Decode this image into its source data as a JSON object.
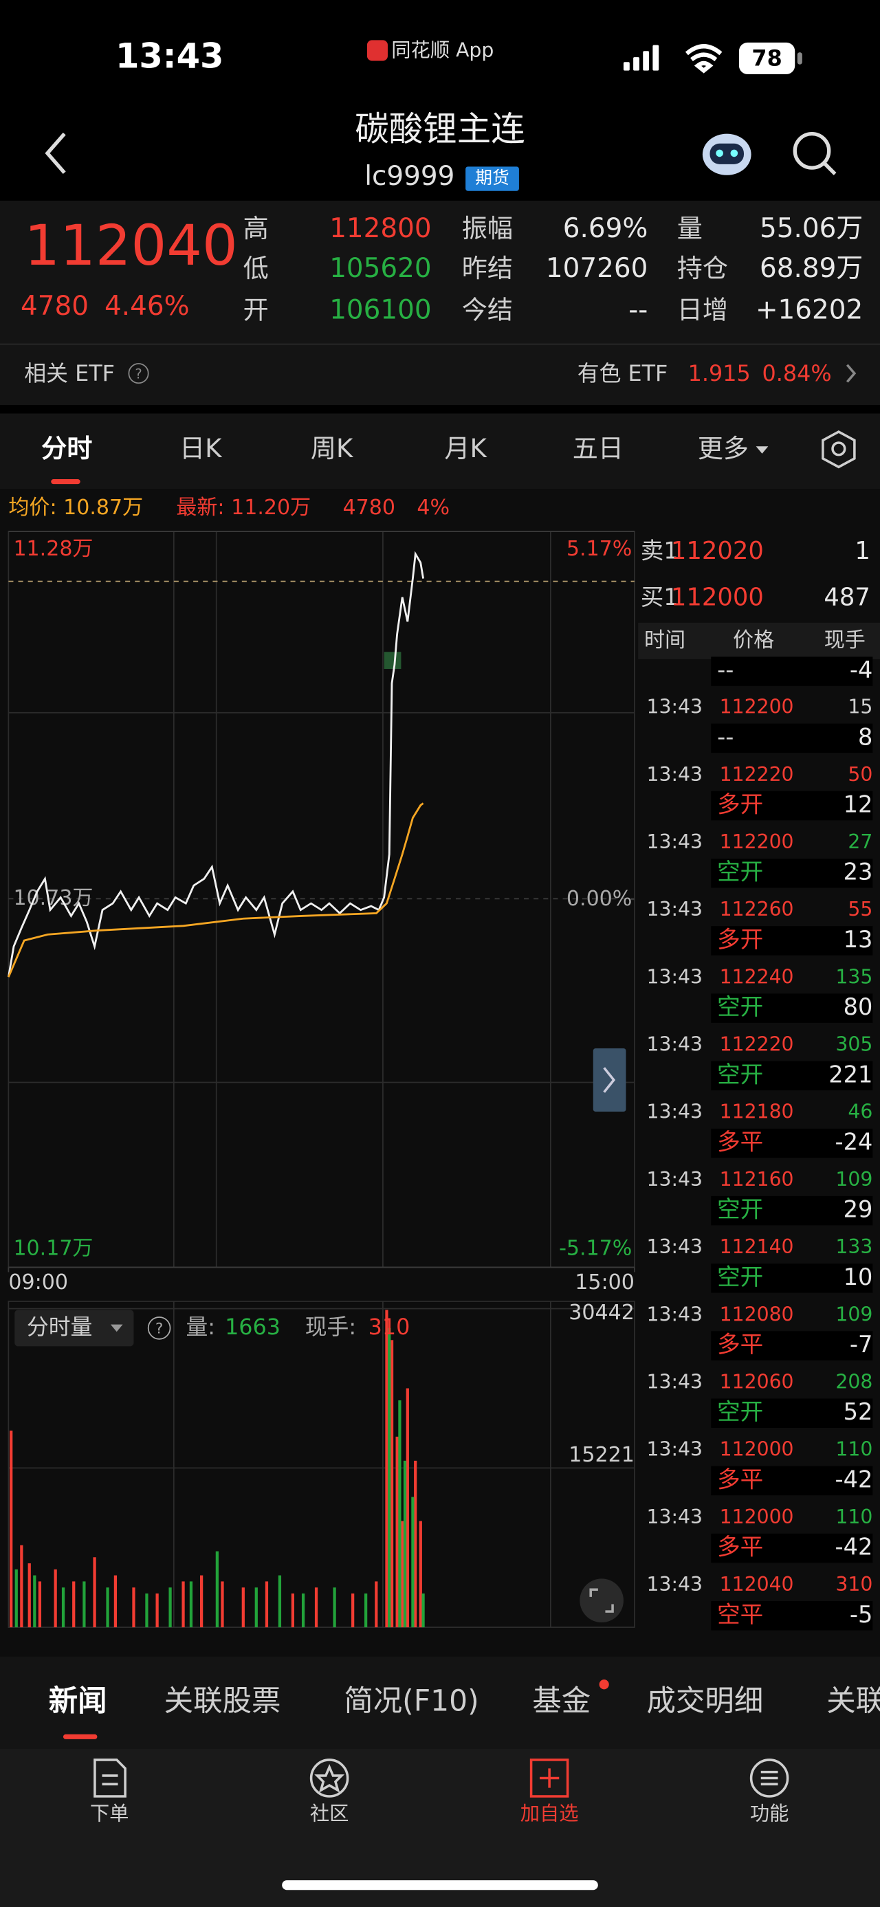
{
  "status": {
    "time": "13:43",
    "app": "同花顺 App",
    "battery": "78"
  },
  "header": {
    "title": "碳酸锂主连",
    "code": "lc9999",
    "tag": "期货"
  },
  "quote": {
    "price": "112040",
    "change": "4780",
    "change_pct": "4.46%",
    "stats": [
      [
        {
          "label": "高",
          "value": "112800",
          "color": "#f23c32"
        },
        {
          "label": "振幅",
          "value": "6.69%",
          "color": "#e8e8e8"
        },
        {
          "label": "量",
          "value": "55.06万",
          "color": "#e8e8e8"
        }
      ],
      [
        {
          "label": "低",
          "value": "105620",
          "color": "#27b043"
        },
        {
          "label": "昨结",
          "value": "107260",
          "color": "#e8e8e8"
        },
        {
          "label": "持仓",
          "value": "68.89万",
          "color": "#e8e8e8"
        }
      ],
      [
        {
          "label": "开",
          "value": "106100",
          "color": "#27b043"
        },
        {
          "label": "今结",
          "value": "--",
          "color": "#e8e8e8"
        },
        {
          "label": "日增",
          "value": "+16202",
          "color": "#e8e8e8"
        }
      ]
    ]
  },
  "etf": {
    "label": "相关 ETF",
    "name": "有色 ETF",
    "price": "1.915",
    "pct": "0.84%"
  },
  "period_tabs": [
    "分时",
    "日K",
    "周K",
    "月K",
    "五日",
    "更多"
  ],
  "summary": {
    "avg": "均价: 10.87万",
    "latest": "最新: 11.20万",
    "change": "4780",
    "pct": "4%"
  },
  "chart_data": [
    {
      "type": "line",
      "xlim": [
        0,
        240
      ],
      "xticks": [
        {
          "value": 0,
          "label": "09:00"
        },
        {
          "value": 240,
          "label": "15:00"
        }
      ],
      "ylim": [
        101700,
        112800
      ],
      "yticks": [
        {
          "value": 112800,
          "label": "11.28万"
        },
        {
          "value": 107260,
          "label": "10.73万"
        },
        {
          "value": 101700,
          "label": "10.17万"
        }
      ],
      "y2lim": [
        -5.17,
        5.17
      ],
      "y2ticks": [
        {
          "value": 5.17,
          "label": "5.17%"
        },
        {
          "value": 0,
          "label": "0.00%"
        },
        {
          "value": -5.17,
          "label": "-5.17%"
        }
      ],
      "series": [
        {
          "color": "#f0f0f0",
          "x": [
            0,
            2,
            5,
            8,
            11,
            14,
            16,
            20,
            24,
            27,
            30,
            33,
            36,
            40,
            43,
            47,
            50,
            54,
            57,
            61,
            64,
            68,
            71,
            75,
            78,
            81,
            84,
            88,
            91,
            95,
            98,
            102,
            105,
            109,
            112,
            116,
            120,
            123,
            127,
            131,
            135,
            139,
            142,
            144,
            146,
            147,
            148,
            149,
            151,
            152,
            153,
            155,
            156,
            158,
            159
          ],
          "values": [
            106080,
            106540,
            106820,
            107090,
            107370,
            107560,
            107090,
            107280,
            107000,
            107190,
            106910,
            106540,
            107090,
            107190,
            107370,
            107090,
            107280,
            107000,
            107190,
            107090,
            107280,
            107190,
            107460,
            107560,
            107740,
            107190,
            107460,
            107090,
            107280,
            107090,
            107280,
            106720,
            107190,
            107370,
            107090,
            107190,
            107090,
            107190,
            107040,
            107190,
            107090,
            107150,
            107090,
            107280,
            107930,
            110510,
            110790,
            111250,
            111810,
            111620,
            111440,
            112090,
            112460,
            112330,
            112090
          ]
        },
        {
          "color": "#f5a623",
          "x": [
            0,
            6,
            15,
            34,
            67,
            90,
            113,
            141,
            145,
            148,
            151,
            153,
            155,
            158,
            159
          ],
          "values": [
            106080,
            106630,
            106720,
            106780,
            106850,
            106960,
            107000,
            107040,
            107190,
            107560,
            107930,
            108200,
            108480,
            108670,
            108700
          ]
        }
      ]
    },
    {
      "type": "bar",
      "xlim": [
        0,
        240
      ],
      "ylim": [
        0,
        30442
      ],
      "yticks": [
        30442,
        15221
      ],
      "series": [
        {
          "color": "#f23c32",
          "x": [
            1,
            5,
            8,
            12,
            18,
            25,
            33,
            41,
            48,
            57,
            67,
            74,
            82,
            90,
            99,
            109,
            118,
            132,
            141,
            145,
            147,
            149,
            151,
            153,
            156,
            158
          ],
          "values": [
            18790,
            7840,
            6110,
            4380,
            5530,
            4380,
            6690,
            4960,
            3800,
            3230,
            4380,
            4960,
            4380,
            3800,
            4380,
            3230,
            3800,
            3230,
            4380,
            30320,
            27440,
            18210,
            10150,
            22830,
            15910,
            10150
          ]
        },
        {
          "color": "#22a33a",
          "x": [
            3,
            10,
            21,
            29,
            38,
            53,
            62,
            70,
            80,
            95,
            104,
            113,
            125,
            137,
            146,
            150,
            152,
            155,
            159
          ],
          "values": [
            5530,
            4960,
            3800,
            4380,
            3800,
            3230,
            3800,
            4380,
            7260,
            3800,
            4960,
            3230,
            3800,
            3230,
            28590,
            21680,
            15910,
            12450,
            3230
          ]
        }
      ]
    }
  ],
  "volume_panel": {
    "selector": "分时量",
    "vol_label": "量:",
    "vol": "1663",
    "hand_label": "现手:",
    "hand": "310"
  },
  "order_book": {
    "ask_label": "卖1",
    "ask_price": "112020",
    "ask_vol": "1",
    "bid_label": "买1",
    "bid_price": "112000",
    "bid_vol": "487",
    "columns": [
      "时间",
      "价格",
      "现手"
    ]
  },
  "trades": [
    {
      "kind": "--",
      "kind_color": "#cfcfcf",
      "net": "-4"
    },
    {
      "time": "13:43",
      "price": "112200",
      "vol": "15",
      "vol_color": "#cfcfcf",
      "kind": "--",
      "kind_color": "#cfcfcf",
      "net": "8"
    },
    {
      "time": "13:43",
      "price": "112220",
      "vol": "50",
      "vol_color": "#f23c32",
      "kind": "多开",
      "kind_color": "#f23c32",
      "net": "12"
    },
    {
      "time": "13:43",
      "price": "112200",
      "vol": "27",
      "vol_color": "#27b043",
      "kind": "空开",
      "kind_color": "#27b043",
      "net": "23"
    },
    {
      "time": "13:43",
      "price": "112260",
      "vol": "55",
      "vol_color": "#f23c32",
      "kind": "多开",
      "kind_color": "#f23c32",
      "net": "13"
    },
    {
      "time": "13:43",
      "price": "112240",
      "vol": "135",
      "vol_color": "#27b043",
      "kind": "空开",
      "kind_color": "#27b043",
      "net": "80"
    },
    {
      "time": "13:43",
      "price": "112220",
      "vol": "305",
      "vol_color": "#27b043",
      "kind": "空开",
      "kind_color": "#27b043",
      "net": "221"
    },
    {
      "time": "13:43",
      "price": "112180",
      "vol": "46",
      "vol_color": "#27b043",
      "kind": "多平",
      "kind_color": "#f23c32",
      "net": "-24"
    },
    {
      "time": "13:43",
      "price": "112160",
      "vol": "109",
      "vol_color": "#27b043",
      "kind": "空开",
      "kind_color": "#27b043",
      "net": "29"
    },
    {
      "time": "13:43",
      "price": "112140",
      "vol": "133",
      "vol_color": "#27b043",
      "kind": "空开",
      "kind_color": "#27b043",
      "net": "10"
    },
    {
      "time": "13:43",
      "price": "112080",
      "vol": "109",
      "vol_color": "#27b043",
      "kind": "多平",
      "kind_color": "#f23c32",
      "net": "-7"
    },
    {
      "time": "13:43",
      "price": "112060",
      "vol": "208",
      "vol_color": "#27b043",
      "kind": "空开",
      "kind_color": "#27b043",
      "net": "52"
    },
    {
      "time": "13:43",
      "price": "112000",
      "vol": "110",
      "vol_color": "#27b043",
      "kind": "多平",
      "kind_color": "#f23c32",
      "net": "-42"
    },
    {
      "time": "13:43",
      "price": "112000",
      "vol": "110",
      "vol_color": "#27b043",
      "kind": "多平",
      "kind_color": "#f23c32",
      "net": "-42"
    },
    {
      "time": "13:43",
      "price": "112040",
      "vol": "310",
      "vol_color": "#f23c32",
      "kind": "空平",
      "kind_color": "#f23c32",
      "net": "-5"
    }
  ],
  "bottom_tabs": [
    "新闻",
    "关联股票",
    "简况(F10)",
    "基金",
    "成交明细",
    "关联"
  ],
  "nav": [
    "下单",
    "社区",
    "加自选",
    "功能"
  ]
}
